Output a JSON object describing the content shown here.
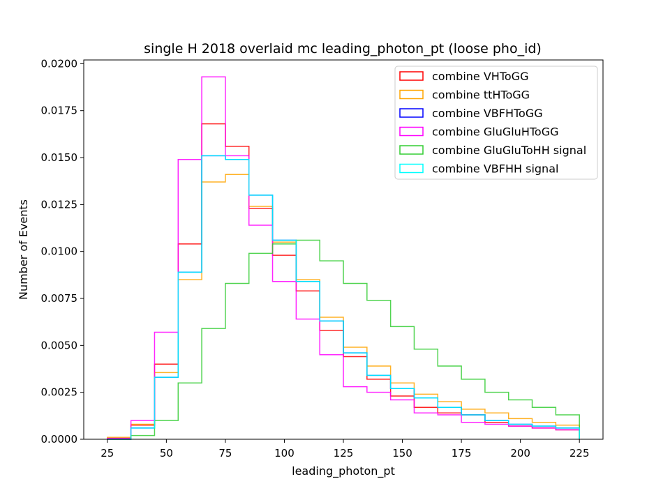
{
  "chart_data": {
    "type": "histogram-step",
    "title": "single H 2018 overlaid mc leading_photon_pt (loose pho_id)",
    "xlabel": "leading_photon_pt",
    "ylabel": "Number of Events",
    "xlim": [
      15,
      235
    ],
    "ylim": [
      0,
      0.0202
    ],
    "xticks": [
      25,
      50,
      75,
      100,
      125,
      150,
      175,
      200,
      225
    ],
    "yticks": [
      0.0,
      0.0025,
      0.005,
      0.0075,
      0.01,
      0.0125,
      0.015,
      0.0175,
      0.02
    ],
    "ytick_labels": [
      "0.0000",
      "0.0025",
      "0.0050",
      "0.0075",
      "0.0100",
      "0.0125",
      "0.0150",
      "0.0175",
      "0.0200"
    ],
    "bin_edges": [
      25,
      35,
      45,
      55,
      65,
      75,
      85,
      95,
      105,
      115,
      125,
      135,
      145,
      155,
      165,
      175,
      185,
      195,
      205,
      215,
      225
    ],
    "legend_position": "upper right",
    "series": [
      {
        "name": "combine VHToGG",
        "color": "#ff0000",
        "values": [
          5e-05,
          0.00075,
          0.004,
          0.0104,
          0.0168,
          0.0156,
          0.0123,
          0.0098,
          0.0079,
          0.0058,
          0.0044,
          0.0032,
          0.0023,
          0.0017,
          0.0014,
          0.0013,
          0.0009,
          0.0007,
          0.0006,
          0.0005
        ]
      },
      {
        "name": "combine ttHToGG",
        "color": "#ffa500",
        "values": [
          0.0001,
          0.0008,
          0.00355,
          0.0085,
          0.0137,
          0.0141,
          0.0124,
          0.0105,
          0.0085,
          0.0065,
          0.0049,
          0.0039,
          0.003,
          0.0024,
          0.002,
          0.0016,
          0.0014,
          0.0011,
          0.0009,
          0.00075
        ]
      },
      {
        "name": "combine VBFHToGG",
        "color": "#0000ff",
        "values": [
          0.0,
          0.0006,
          0.0033,
          0.0089,
          0.0151,
          0.0149,
          0.013,
          0.0106,
          0.0084,
          0.0063,
          0.0046,
          0.0034,
          0.0027,
          0.0022,
          0.0017,
          0.0013,
          0.001,
          0.0008,
          0.0007,
          0.0006
        ]
      },
      {
        "name": "combine GluGluHToGG",
        "color": "#ff00ff",
        "values": [
          5e-05,
          0.001,
          0.0057,
          0.0149,
          0.0193,
          0.0151,
          0.0114,
          0.0084,
          0.0064,
          0.0045,
          0.0028,
          0.0025,
          0.0021,
          0.0014,
          0.0013,
          0.0009,
          0.0008,
          0.0007,
          0.0006,
          0.0005
        ]
      },
      {
        "name": "combine GluGluToHH signal",
        "color": "#32cd32",
        "values": [
          0.0,
          0.0002,
          0.001,
          0.003,
          0.0059,
          0.0083,
          0.0099,
          0.0104,
          0.0106,
          0.0095,
          0.0083,
          0.0074,
          0.006,
          0.0048,
          0.0039,
          0.0032,
          0.0025,
          0.0021,
          0.0017,
          0.0013
        ]
      },
      {
        "name": "combine VBFHH signal",
        "color": "#00ffff",
        "values": [
          0.0,
          0.0006,
          0.0033,
          0.0089,
          0.0151,
          0.0149,
          0.013,
          0.0106,
          0.0084,
          0.0063,
          0.0046,
          0.0034,
          0.0027,
          0.0022,
          0.0017,
          0.0013,
          0.001,
          0.0008,
          0.0007,
          0.0006
        ]
      }
    ]
  }
}
